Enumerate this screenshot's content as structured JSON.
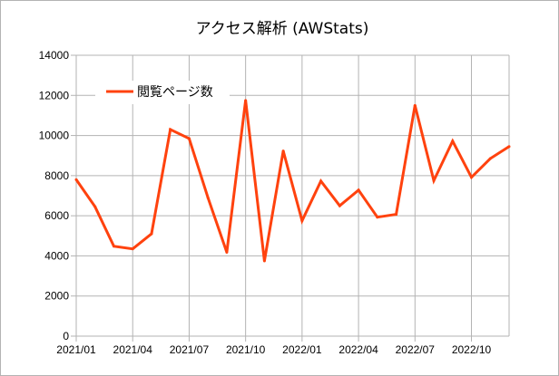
{
  "chart_data": {
    "type": "line",
    "title": "アクセス解析 (AWStats)",
    "xlabel": "",
    "ylabel": "",
    "x": [
      "2021/01",
      "2021/02",
      "2021/03",
      "2021/04",
      "2021/05",
      "2021/06",
      "2021/07",
      "2021/08",
      "2021/09",
      "2021/10",
      "2021/11",
      "2021/12",
      "2022/01",
      "2022/02",
      "2022/03",
      "2022/04",
      "2022/05",
      "2022/06",
      "2022/07",
      "2022/08",
      "2022/09",
      "2022/10",
      "2022/11",
      "2022/12"
    ],
    "x_tick_labels": [
      "2021/01",
      "2021/04",
      "2021/07",
      "2021/10",
      "2022/01",
      "2022/04",
      "2022/07",
      "2022/10"
    ],
    "y_tick_labels": [
      "0",
      "2000",
      "4000",
      "6000",
      "8000",
      "10000",
      "12000",
      "14000"
    ],
    "ylim": [
      0,
      14000
    ],
    "grid": true,
    "legend_position": "top-left",
    "series": [
      {
        "name": "閲覧ページ数",
        "color": "#ff420e",
        "values": [
          7800,
          6450,
          4480,
          4350,
          5100,
          10300,
          9850,
          6900,
          4180,
          11750,
          3750,
          9230,
          5750,
          7730,
          6500,
          7280,
          5930,
          6070,
          11500,
          7750,
          9720,
          7920,
          8850,
          9450
        ]
      }
    ]
  }
}
